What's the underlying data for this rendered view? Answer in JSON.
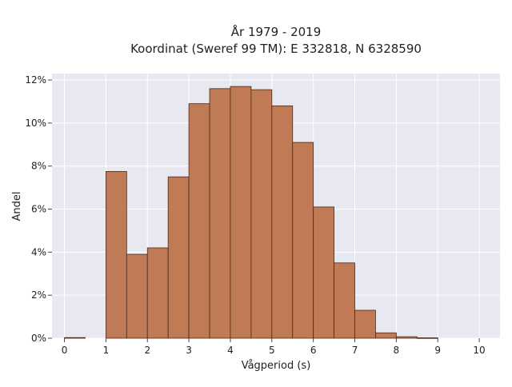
{
  "chart_data": {
    "type": "bar",
    "title": "År 1979 - 2019",
    "subtitle": "Koordinat (Sweref 99 TM): E 332818, N 6328590",
    "xlabel": "Vågperiod (s)",
    "ylabel": "Andel",
    "xlim": [
      -0.3,
      10.5
    ],
    "ylim": [
      0,
      12.3
    ],
    "x_ticks": [
      "0",
      "1",
      "2",
      "3",
      "4",
      "5",
      "6",
      "7",
      "8",
      "9",
      "10"
    ],
    "y_ticks": [
      "0%",
      "2%",
      "4%",
      "6%",
      "8%",
      "10%",
      "12%"
    ],
    "bin_width": 0.5,
    "bins": [
      {
        "start": 0.0,
        "value": 0.03
      },
      {
        "start": 0.5,
        "value": 0.0
      },
      {
        "start": 1.0,
        "value": 7.75
      },
      {
        "start": 1.5,
        "value": 3.9
      },
      {
        "start": 2.0,
        "value": 4.2
      },
      {
        "start": 2.5,
        "value": 7.5
      },
      {
        "start": 3.0,
        "value": 10.9
      },
      {
        "start": 3.5,
        "value": 11.6
      },
      {
        "start": 4.0,
        "value": 11.7
      },
      {
        "start": 4.5,
        "value": 11.55
      },
      {
        "start": 5.0,
        "value": 10.8
      },
      {
        "start": 5.5,
        "value": 9.1
      },
      {
        "start": 6.0,
        "value": 6.1
      },
      {
        "start": 6.5,
        "value": 3.5
      },
      {
        "start": 7.0,
        "value": 1.3
      },
      {
        "start": 7.5,
        "value": 0.25
      },
      {
        "start": 8.0,
        "value": 0.07
      },
      {
        "start": 8.5,
        "value": 0.02
      },
      {
        "start": 9.0,
        "value": 0.0
      },
      {
        "start": 9.5,
        "value": 0.0
      }
    ],
    "bar_color": "#c07a55",
    "bar_edge_color": "#4a2a1a",
    "plot_background": "#e8e8f0",
    "grid": true,
    "legend": "none"
  }
}
